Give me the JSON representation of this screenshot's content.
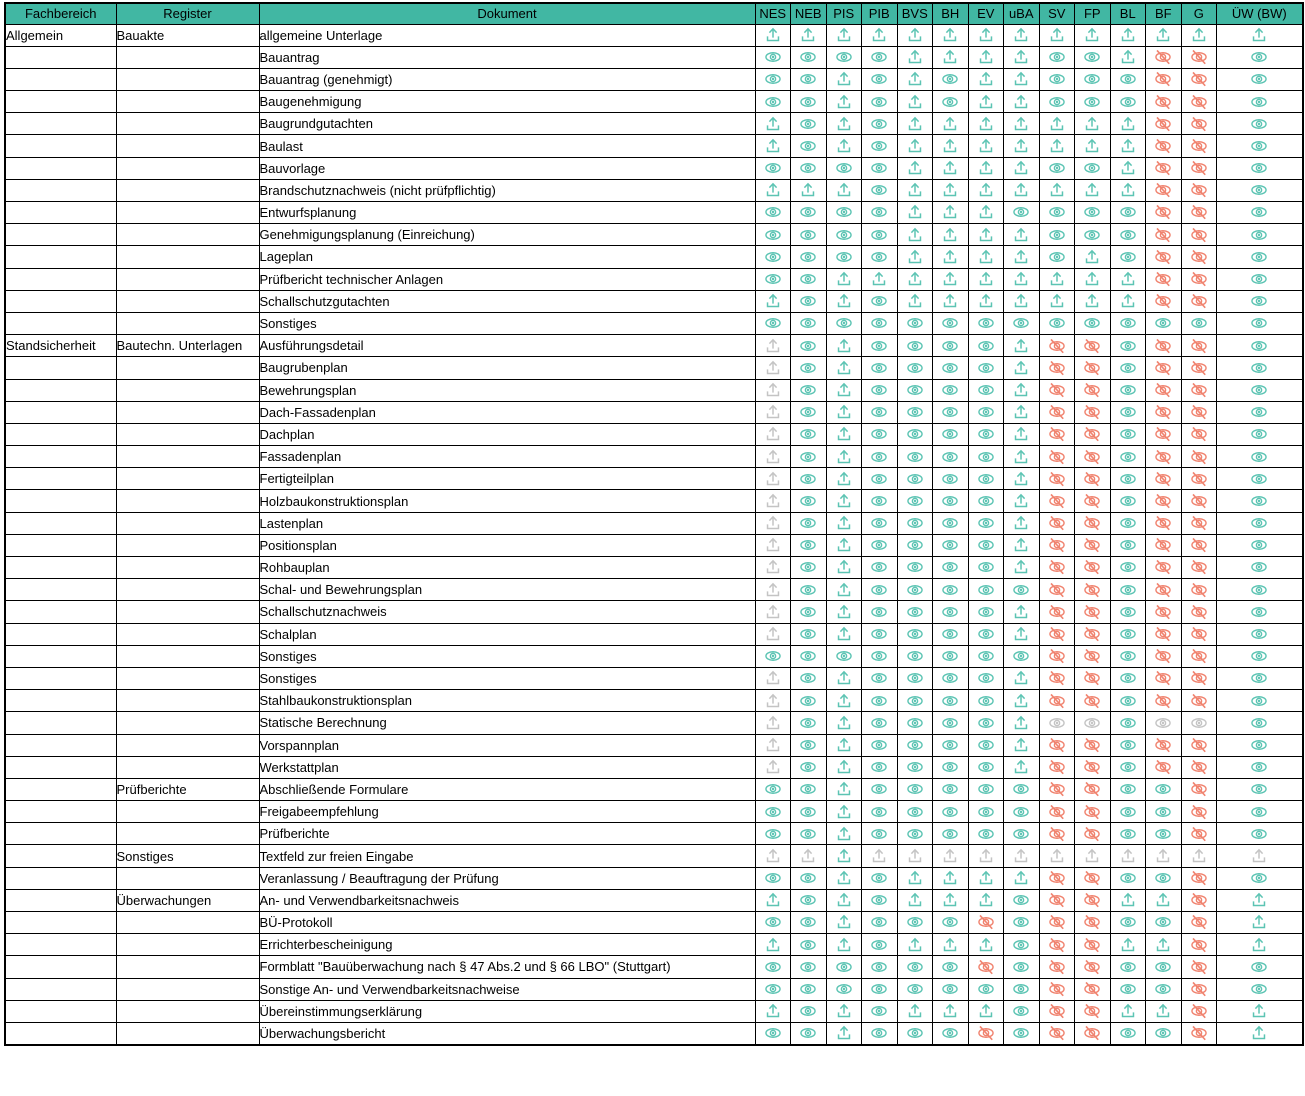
{
  "table": {
    "header": {
      "fachbereich": "Fachbereich",
      "register": "Register",
      "dokument": "Dokument",
      "status_columns": [
        "NES",
        "NEB",
        "PIS",
        "PIB",
        "BVS",
        "BH",
        "EV",
        "uBA",
        "SV",
        "FP",
        "BL",
        "BF",
        "G",
        "ÜW (BW)"
      ]
    },
    "colors": {
      "header_bg": "#41b7a3",
      "icon_teal": "#5cc4b3",
      "icon_red": "#f0836f",
      "icon_gray": "#c4c4c4",
      "border": "#000000"
    },
    "icon_legend": {
      "U": "upload-icon",
      "u": "upload-icon-disabled",
      "E": "view-eye-icon",
      "e": "view-eye-icon-disabled",
      "X": "no-view-eye-slash-icon"
    },
    "rows": [
      {
        "f": "Allgemein",
        "r": "Bauakte",
        "d": "allgemeine Unterlage",
        "s": "UUUUUUUUUUUUUU"
      },
      {
        "f": "",
        "r": "",
        "d": "Bauantrag",
        "s": "EEEEUUUUEEUXXE"
      },
      {
        "f": "",
        "r": "",
        "d": "Bauantrag (genehmigt)",
        "s": "EEUEUEUUEEEXXE"
      },
      {
        "f": "",
        "r": "",
        "d": "Baugenehmigung",
        "s": "EEUEUEUUEEEXXE"
      },
      {
        "f": "",
        "r": "",
        "d": "Baugrundgutachten",
        "s": "UEUEUUUUUUUXXE"
      },
      {
        "f": "",
        "r": "",
        "d": "Baulast",
        "s": "UEUEUUUUUUUXXE"
      },
      {
        "f": "",
        "r": "",
        "d": "Bauvorlage",
        "s": "EEEEUUUUEEUXXE"
      },
      {
        "f": "",
        "r": "",
        "d": "Brandschutznachweis (nicht prüfpflichtig)",
        "s": "UUUEUUUUUUUXXE"
      },
      {
        "f": "",
        "r": "",
        "d": "Entwurfsplanung",
        "s": "EEEEUUUEEEEXXE"
      },
      {
        "f": "",
        "r": "",
        "d": "Genehmigungsplanung (Einreichung)",
        "s": "EEEEUUUUEEEXXE"
      },
      {
        "f": "",
        "r": "",
        "d": "Lageplan",
        "s": "EEEEUUUUEUEXXE"
      },
      {
        "f": "",
        "r": "",
        "d": "Prüfbericht technischer Anlagen",
        "s": "EEUUUUUUUUUXXE"
      },
      {
        "f": "",
        "r": "",
        "d": "Schallschutzgutachten",
        "s": "UEUEUUUUUUUXXE"
      },
      {
        "f": "",
        "r": "",
        "d": "Sonstiges",
        "s": "EEEEEEEEEEEEEE"
      },
      {
        "f": "Standsicherheit",
        "r": "Bautechn. Unterlagen",
        "d": "Ausführungsdetail",
        "s": "uEUEEEEUXXEXXE"
      },
      {
        "f": "",
        "r": "",
        "d": "Baugrubenplan",
        "s": "uEUEEEEUXXEXXE"
      },
      {
        "f": "",
        "r": "",
        "d": "Bewehrungsplan",
        "s": "uEUEEEEUXXEXXE"
      },
      {
        "f": "",
        "r": "",
        "d": "Dach-Fassadenplan",
        "s": "uEUEEEEUXXEXXE"
      },
      {
        "f": "",
        "r": "",
        "d": "Dachplan",
        "s": "uEUEEEEUXXEXXE"
      },
      {
        "f": "",
        "r": "",
        "d": "Fassadenplan",
        "s": "uEUEEEEUXXEXXE"
      },
      {
        "f": "",
        "r": "",
        "d": "Fertigteilplan",
        "s": "uEUEEEEUXXEXXE"
      },
      {
        "f": "",
        "r": "",
        "d": "Holzbaukonstruktionsplan",
        "s": "uEUEEEEUXXEXXE"
      },
      {
        "f": "",
        "r": "",
        "d": "Lastenplan",
        "s": "uEUEEEEUXXEXXE"
      },
      {
        "f": "",
        "r": "",
        "d": "Positionsplan",
        "s": "uEUEEEEUXXEXXE"
      },
      {
        "f": "",
        "r": "",
        "d": "Rohbauplan",
        "s": "uEUEEEEUXXEXXE"
      },
      {
        "f": "",
        "r": "",
        "d": "Schal- und Bewehrungsplan",
        "s": "uEUEEEEEXXEXXE"
      },
      {
        "f": "",
        "r": "",
        "d": "Schallschutznachweis",
        "s": "uEUEEEEUXXEXXE"
      },
      {
        "f": "",
        "r": "",
        "d": "Schalplan",
        "s": "uEUEEEEUXXEXXE"
      },
      {
        "f": "",
        "r": "",
        "d": "Sonstiges",
        "s": "EEEEEEEEXXEXXE"
      },
      {
        "f": "",
        "r": "",
        "d": "Sonstiges",
        "s": "uEUEEEEUXXEXXE"
      },
      {
        "f": "",
        "r": "",
        "d": "Stahlbaukonstruktionsplan",
        "s": "uEUEEEEUXXEXXE"
      },
      {
        "f": "",
        "r": "",
        "d": "Statische Berechnung",
        "s": "uEUEEEEUeeEeeE"
      },
      {
        "f": "",
        "r": "",
        "d": "Vorspannplan",
        "s": "uEUEEEEUXXEXXE"
      },
      {
        "f": "",
        "r": "",
        "d": "Werkstattplan",
        "s": "uEUEEEEUXXEXXE"
      },
      {
        "f": "",
        "r": "Prüfberichte",
        "d": "Abschließende Formulare",
        "s": "EEUEEEEEXXEEXE"
      },
      {
        "f": "",
        "r": "",
        "d": "Freigabeempfehlung",
        "s": "EEUEEEEEXXEEXE"
      },
      {
        "f": "",
        "r": "",
        "d": "Prüfberichte",
        "s": "EEUEEEEEXXEEXE"
      },
      {
        "f": "",
        "r": "Sonstiges",
        "d": "Textfeld zur freien Eingabe",
        "s": "uuUuuuuuuuuuuu"
      },
      {
        "f": "",
        "r": "",
        "d": "Veranlassung / Beauftragung der Prüfung",
        "s": "EEUEUUUUXXEEXE"
      },
      {
        "f": "",
        "r": "Überwachungen",
        "d": "An- und Verwendbarkeitsnachweis",
        "s": "UEUEUUUEXXUUXU"
      },
      {
        "f": "",
        "r": "",
        "d": "BÜ-Protokoll",
        "s": "EEUEEEXEXXEEXU"
      },
      {
        "f": "",
        "r": "",
        "d": "Errichterbescheinigung",
        "s": "UEUEUUUEXXUUXU"
      },
      {
        "f": "",
        "r": "",
        "d": "Formblatt \"Bauüberwachung nach § 47 Abs.2 und § 66 LBO\" (Stuttgart)",
        "s": "EEEEEEXEXXEEXE"
      },
      {
        "f": "",
        "r": "",
        "d": "Sonstige An- und Verwendbarkeitsnachweise",
        "s": "EEEEEEEEXXEEXE"
      },
      {
        "f": "",
        "r": "",
        "d": "Übereinstimmungserklärung",
        "s": "UEUEUUUEXXUUXU"
      },
      {
        "f": "",
        "r": "",
        "d": "Überwachungsbericht",
        "s": "EEUEEEXEXXEEXU"
      }
    ]
  }
}
